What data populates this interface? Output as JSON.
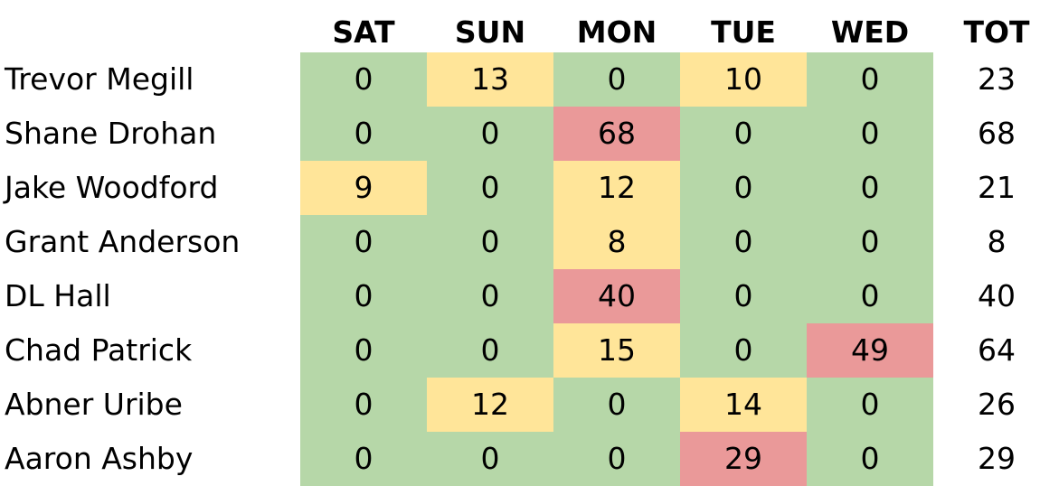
{
  "table": {
    "columns": [
      "SAT",
      "SUN",
      "MON",
      "TUE",
      "WED",
      "TOT"
    ],
    "rows": [
      {
        "name": "Trevor Megill",
        "cells": [
          0,
          13,
          0,
          10,
          0,
          23
        ],
        "colors": [
          "#b6d7a8",
          "#ffe599",
          "#b6d7a8",
          "#ffe599",
          "#b6d7a8"
        ]
      },
      {
        "name": "Shane Drohan",
        "cells": [
          0,
          0,
          68,
          0,
          0,
          68
        ],
        "colors": [
          "#b6d7a8",
          "#b6d7a8",
          "#ea9999",
          "#b6d7a8",
          "#b6d7a8"
        ]
      },
      {
        "name": "Jake Woodford",
        "cells": [
          9,
          0,
          12,
          0,
          0,
          21
        ],
        "colors": [
          "#ffe599",
          "#b6d7a8",
          "#ffe599",
          "#b6d7a8",
          "#b6d7a8"
        ]
      },
      {
        "name": "Grant Anderson",
        "cells": [
          0,
          0,
          8,
          0,
          0,
          8
        ],
        "colors": [
          "#b6d7a8",
          "#b6d7a8",
          "#ffe599",
          "#b6d7a8",
          "#b6d7a8"
        ]
      },
      {
        "name": "DL Hall",
        "cells": [
          0,
          0,
          40,
          0,
          0,
          40
        ],
        "colors": [
          "#b6d7a8",
          "#b6d7a8",
          "#ea9999",
          "#b6d7a8",
          "#b6d7a8"
        ]
      },
      {
        "name": "Chad Patrick",
        "cells": [
          0,
          0,
          15,
          0,
          49,
          64
        ],
        "colors": [
          "#b6d7a8",
          "#b6d7a8",
          "#ffe599",
          "#b6d7a8",
          "#ea9999"
        ]
      },
      {
        "name": "Abner Uribe",
        "cells": [
          0,
          12,
          0,
          14,
          0,
          26
        ],
        "colors": [
          "#b6d7a8",
          "#ffe599",
          "#b6d7a8",
          "#ffe599",
          "#b6d7a8"
        ]
      },
      {
        "name": "Aaron Ashby",
        "cells": [
          0,
          0,
          0,
          29,
          0,
          29
        ],
        "colors": [
          "#b6d7a8",
          "#b6d7a8",
          "#b6d7a8",
          "#ea9999",
          "#b6d7a8"
        ]
      }
    ]
  }
}
